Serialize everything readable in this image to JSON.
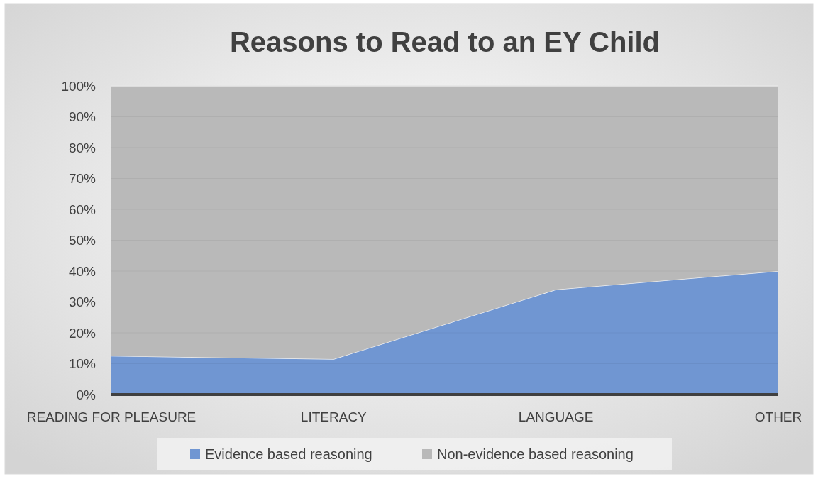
{
  "chart_data": {
    "type": "area",
    "title": "Reasons to Read to an EY Child",
    "categories": [
      "READING FOR PLEASURE",
      "LITERACY",
      "LANGUAGE",
      "OTHER"
    ],
    "stacked": true,
    "series": [
      {
        "name": "Evidence based reasoning",
        "color": "#7096d2",
        "values": [
          12.5,
          11.5,
          34,
          40
        ]
      },
      {
        "name": "Non-evidence based reasoning",
        "color": "#b9b9b9",
        "values": [
          87.5,
          88.5,
          66,
          60
        ]
      }
    ],
    "ylim": [
      0,
      100
    ],
    "yticks": [
      {
        "value": 0,
        "label": "0%"
      },
      {
        "value": 10,
        "label": "10%"
      },
      {
        "value": 20,
        "label": "20%"
      },
      {
        "value": 30,
        "label": "30%"
      },
      {
        "value": 40,
        "label": "40%"
      },
      {
        "value": 50,
        "label": "50%"
      },
      {
        "value": 60,
        "label": "60%"
      },
      {
        "value": 70,
        "label": "70%"
      },
      {
        "value": 80,
        "label": "80%"
      },
      {
        "value": 90,
        "label": "90%"
      },
      {
        "value": 100,
        "label": "100%"
      }
    ],
    "grid": "y",
    "legend": "bottom"
  }
}
